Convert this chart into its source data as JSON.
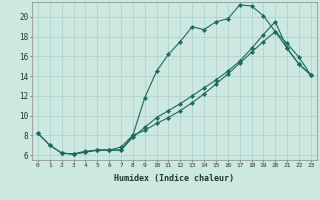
{
  "xlabel": "Humidex (Indice chaleur)",
  "ylabel": "",
  "background_color": "#cce8e0",
  "grid_color": "#aacfc8",
  "line_color": "#1a6b5a",
  "xlim": [
    -0.5,
    23.5
  ],
  "ylim": [
    5.5,
    21.5
  ],
  "xticks": [
    0,
    1,
    2,
    3,
    4,
    5,
    6,
    7,
    8,
    9,
    10,
    11,
    12,
    13,
    14,
    15,
    16,
    17,
    18,
    19,
    20,
    21,
    22,
    23
  ],
  "yticks": [
    6,
    8,
    10,
    12,
    14,
    16,
    18,
    20
  ],
  "line1_x": [
    0,
    1,
    2,
    3,
    4,
    5,
    6,
    7,
    8,
    9,
    10,
    11,
    12,
    13,
    14,
    15,
    16,
    17,
    18,
    19,
    20,
    21,
    22,
    23
  ],
  "line1_y": [
    8.2,
    7.0,
    6.2,
    6.1,
    6.4,
    6.5,
    6.5,
    6.5,
    8.0,
    11.8,
    14.5,
    16.2,
    17.5,
    19.0,
    18.7,
    19.5,
    19.8,
    21.2,
    21.1,
    20.1,
    18.5,
    17.3,
    15.9,
    14.1
  ],
  "line2_x": [
    0,
    1,
    2,
    3,
    4,
    5,
    6,
    7,
    8,
    9,
    10,
    11,
    12,
    13,
    14,
    15,
    16,
    17,
    18,
    19,
    20,
    21,
    22,
    23
  ],
  "line2_y": [
    8.2,
    7.0,
    6.2,
    6.1,
    6.3,
    6.5,
    6.5,
    6.8,
    8.0,
    8.5,
    9.2,
    9.8,
    10.5,
    11.3,
    12.2,
    13.2,
    14.2,
    15.3,
    16.4,
    17.5,
    18.5,
    16.8,
    15.2,
    14.1
  ],
  "line3_x": [
    2,
    3,
    4,
    5,
    6,
    7,
    8,
    9,
    10,
    11,
    12,
    13,
    14,
    15,
    16,
    17,
    18,
    19,
    20,
    21,
    22,
    23
  ],
  "line3_y": [
    6.2,
    6.1,
    6.3,
    6.5,
    6.5,
    6.5,
    7.8,
    8.8,
    9.8,
    10.5,
    11.2,
    12.0,
    12.8,
    13.6,
    14.5,
    15.5,
    16.8,
    18.2,
    19.5,
    16.8,
    15.2,
    14.1
  ]
}
